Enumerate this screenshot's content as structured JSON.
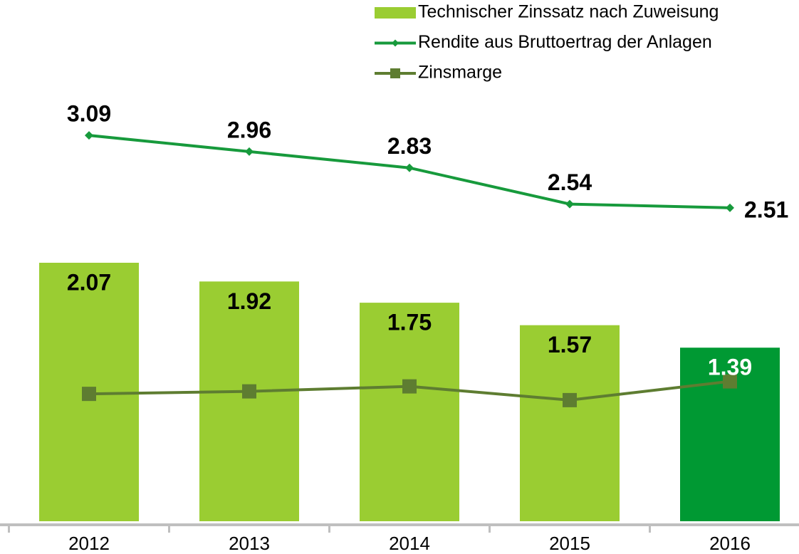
{
  "chart_data": {
    "type": "bar",
    "categories": [
      "2012",
      "2013",
      "2014",
      "2015",
      "2016"
    ],
    "series": [
      {
        "name": "Technischer Zinssatz nach Zuweisung",
        "type": "bar",
        "color": "#9acd32",
        "colors": [
          "#9acd32",
          "#9acd32",
          "#9acd32",
          "#9acd32",
          "#009933"
        ],
        "label_colors": [
          "#000000",
          "#000000",
          "#000000",
          "#000000",
          "#ffffff"
        ],
        "values": [
          2.07,
          1.92,
          1.75,
          1.57,
          1.39
        ]
      },
      {
        "name": "Rendite aus Bruttoertrag der Anlagen",
        "type": "line",
        "marker": "diamond",
        "color": "#179a3c",
        "values": [
          3.09,
          2.96,
          2.83,
          2.54,
          2.51
        ]
      },
      {
        "name": "Zinsmarge",
        "type": "line",
        "marker": "square",
        "color": "#5e7d31",
        "values": [
          1.02,
          1.04,
          1.08,
          0.97,
          1.12
        ]
      }
    ],
    "ylim": [
      0,
      4.1
    ]
  }
}
